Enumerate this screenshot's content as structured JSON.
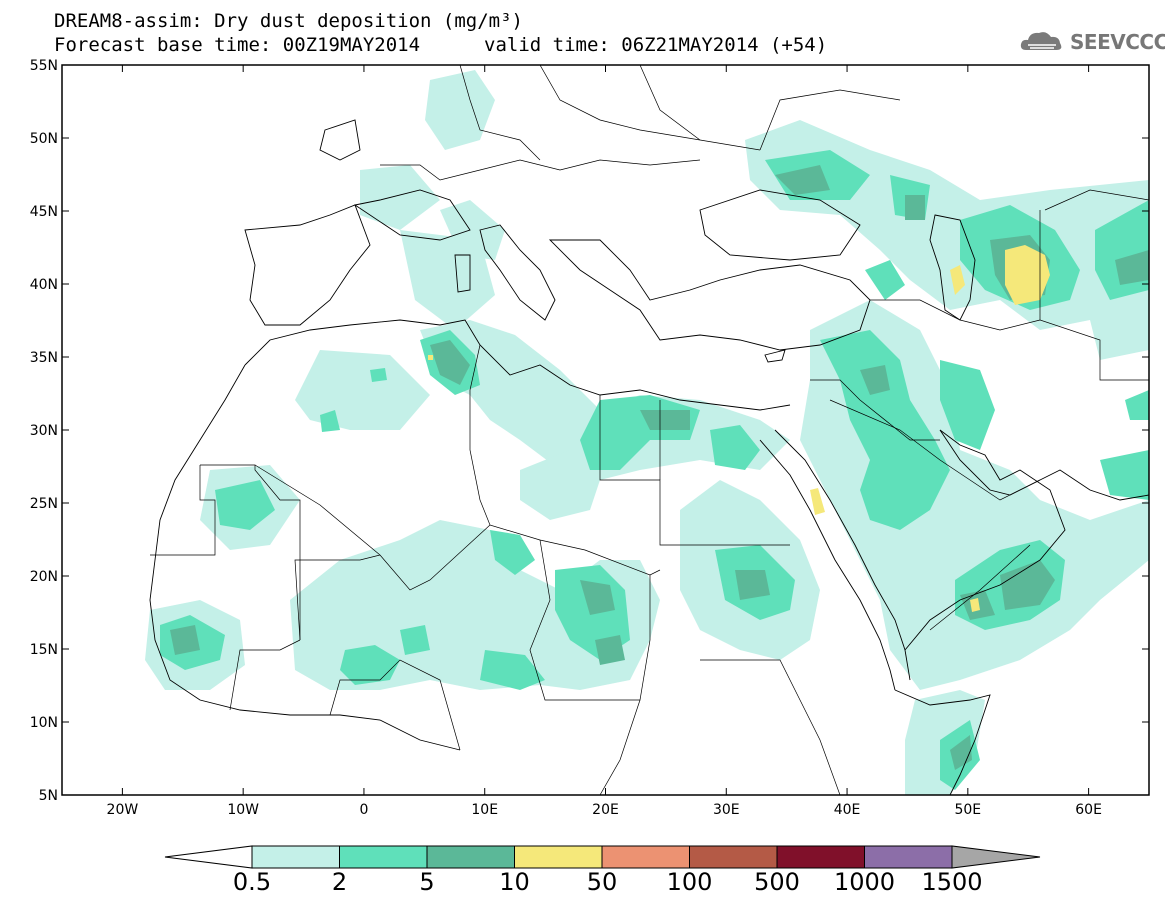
{
  "header": {
    "title": "DREAM8-assim: Dry dust deposition (mg/m³)",
    "base_time": "Forecast base time: 00Z19MAY2014",
    "valid_time": "valid time: 06Z21MAY2014 (+54)"
  },
  "logo": {
    "text": "SEEVCCC",
    "icon": "cloud-icon"
  },
  "map": {
    "projection": "equirectangular",
    "lon_range": [
      -25,
      65
    ],
    "lat_range": [
      5,
      55
    ],
    "lon_ticks": [
      -20,
      -10,
      0,
      10,
      20,
      30,
      40,
      50,
      60
    ],
    "lon_tick_labels": [
      "20W",
      "10W",
      "0",
      "10E",
      "20E",
      "30E",
      "40E",
      "50E",
      "60E"
    ],
    "lat_ticks": [
      55,
      50,
      45,
      40,
      35,
      30,
      25,
      20,
      15,
      10,
      5
    ],
    "lat_tick_labels": [
      "55N",
      "50N",
      "45N",
      "40N",
      "35N",
      "30N",
      "25N",
      "20N",
      "15N",
      "10N",
      "5N"
    ]
  },
  "colorbar": {
    "labels": [
      "0.5",
      "2",
      "5",
      "10",
      "50",
      "100",
      "500",
      "1000",
      "1500"
    ],
    "colors": [
      "#c4f0e8",
      "#5fe0ba",
      "#5bb898",
      "#f5e87a",
      "#ec9272",
      "#b45a46",
      "#80102a",
      "#8c6ea8"
    ],
    "over_color": "#a6a6a6",
    "under_color": "#ffffff"
  }
}
